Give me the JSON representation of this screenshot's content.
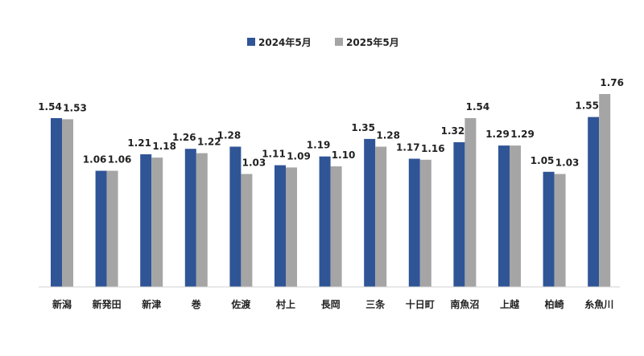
{
  "chart_data": {
    "type": "bar",
    "categories": [
      "新潟",
      "新発田",
      "新津",
      "巻",
      "佐渡",
      "村上",
      "長岡",
      "三条",
      "十日町",
      "南魚沼",
      "上越",
      "柏崎",
      "糸魚川"
    ],
    "series": [
      {
        "name": "2024年5月",
        "color": "#2F5597",
        "values": [
          1.54,
          1.06,
          1.21,
          1.26,
          1.28,
          1.11,
          1.19,
          1.35,
          1.17,
          1.32,
          1.29,
          1.05,
          1.55
        ],
        "labels": [
          "1.54",
          "1.06",
          "1.21",
          "1.26",
          "1.28",
          "1.11",
          "1.19",
          "1.35",
          "1.17",
          "1.32",
          "1.29",
          "1.05",
          "1.55"
        ]
      },
      {
        "name": "2025年5月",
        "color": "#A5A5A5",
        "values": [
          1.53,
          1.06,
          1.18,
          1.22,
          1.03,
          1.09,
          1.1,
          1.28,
          1.16,
          1.54,
          1.29,
          1.03,
          1.76
        ],
        "labels": [
          "1.53",
          "1.06",
          "1.18",
          "1.22",
          "1.03",
          "1.09",
          "1.10",
          "1.28",
          "1.16",
          "1.54",
          "1.29",
          "1.03",
          "1.76"
        ]
      }
    ],
    "ylim": [
      0,
      1.76
    ],
    "grid": false,
    "legend_position": "top-center"
  }
}
